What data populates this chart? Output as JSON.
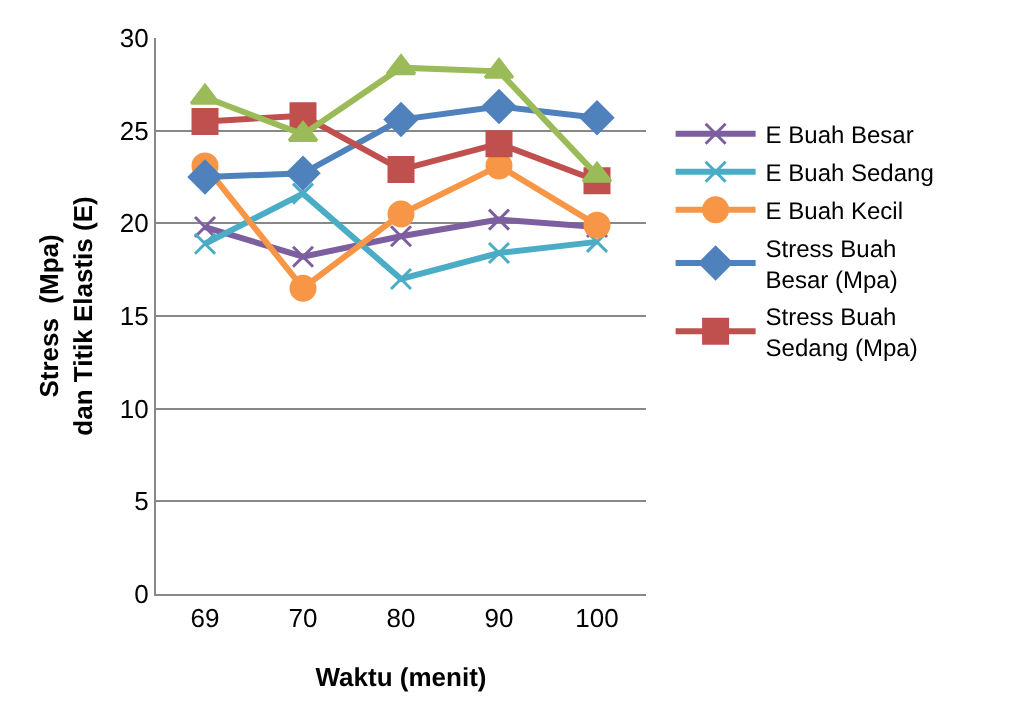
{
  "chart_data": {
    "type": "line",
    "xlabel": "Waktu (menit)",
    "ylabel": "Stress  (Mpa)\ndan Titik Elastis (E)",
    "categories": [
      "69",
      "70",
      "80",
      "90",
      "100"
    ],
    "ylim": [
      0,
      30
    ],
    "yticks": [
      0,
      5,
      10,
      15,
      20,
      25,
      30
    ],
    "grid": "y",
    "legend": "right",
    "line_style": "solid",
    "series": [
      {
        "name": "E Buah Besar",
        "color": "#7d5fa0",
        "marker": "cross",
        "values": [
          19.8,
          18.2,
          19.3,
          20.2,
          19.8
        ]
      },
      {
        "name": "E Buah Sedang",
        "color": "#4bacc6",
        "marker": "cross",
        "values": [
          18.9,
          21.6,
          17.0,
          18.4,
          19.0
        ]
      },
      {
        "name": "E Buah Kecil",
        "color": "#f79646",
        "marker": "circle",
        "values": [
          23.1,
          16.5,
          20.5,
          23.1,
          19.9
        ]
      },
      {
        "name": "Stress Buah Besar (Mpa)",
        "color": "#4f81bd",
        "marker": "diamond",
        "values": [
          22.5,
          22.7,
          25.6,
          26.3,
          25.7
        ]
      },
      {
        "name": "Stress Buah Sedang (Mpa)",
        "color": "#c0504d",
        "marker": "square",
        "values": [
          25.5,
          25.8,
          22.9,
          24.3,
          22.3
        ]
      },
      {
        "color": "#9bbb59",
        "marker": "triangle",
        "values": [
          26.8,
          24.8,
          28.4,
          28.2,
          22.6
        ]
      }
    ]
  }
}
